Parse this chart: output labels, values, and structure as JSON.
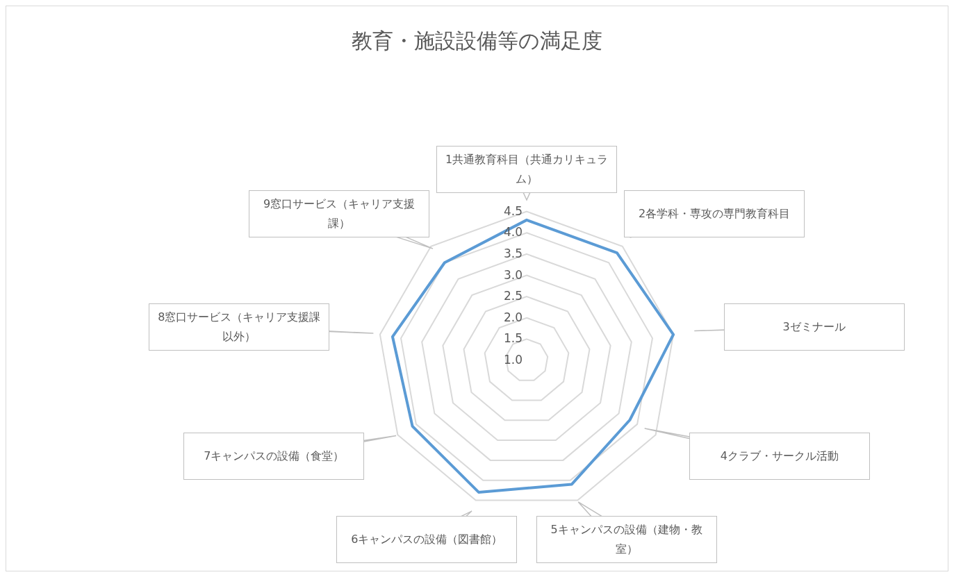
{
  "chart_data": {
    "type": "radar",
    "title": "教育・施設設備等の満足度",
    "categories": [
      "1共通教育科目（共通カリキュラム）",
      "2各学科・専攻の専門教育科目",
      "3ゼミナール",
      "4クラブ・サークル活動",
      "5キャンパスの設備（建物・教室）",
      "6キャンパスの設備（図書館）",
      "7キャンパスの設備（食堂）",
      "8窓口サービス（キャリア支援課以外）",
      "9窓口サービス（キャリア支援課）"
    ],
    "series": [
      {
        "color": "#5b9bd5",
        "values": [
          4.3,
          4.3,
          4.5,
          3.8,
          4.1,
          4.3,
          4.1,
          4.2,
          4.0
        ]
      }
    ],
    "ylim": [
      1,
      4.5
    ],
    "yticks": [
      {
        "value": 1,
        "label": "1.0"
      },
      {
        "value": 1.5,
        "label": "1.5"
      },
      {
        "value": 2,
        "label": "2.0"
      },
      {
        "value": 2.5,
        "label": "2.5"
      },
      {
        "value": 3,
        "label": "3.0"
      },
      {
        "value": 3.5,
        "label": "3.5"
      },
      {
        "value": 4,
        "label": "4.0"
      },
      {
        "value": 4.5,
        "label": "4.5"
      }
    ],
    "grid": true,
    "legend": false,
    "marker": "none",
    "line_style": "solid"
  }
}
